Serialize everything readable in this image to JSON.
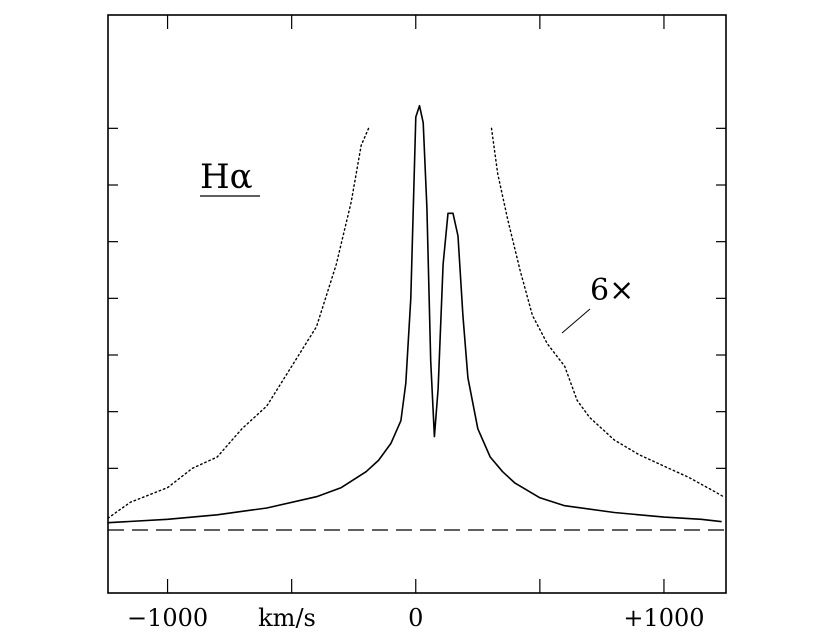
{
  "chart_data": {
    "type": "line",
    "title": "",
    "xlabel": "km/s",
    "ylabel": "",
    "xlim": [
      -1240,
      1250
    ],
    "ylim": [
      -0.6,
      4.5
    ],
    "grid": false,
    "x_ticks": [
      -1000,
      -500,
      0,
      500,
      1000
    ],
    "x_tick_labels": [
      "−1000",
      "",
      "0",
      "",
      "+1000"
    ],
    "y_ticks": [
      0.5,
      1.0,
      1.5,
      2.0,
      2.5,
      3.0,
      3.5
    ],
    "annotations": [
      {
        "text": "Hα"
      },
      {
        "text": "6×"
      }
    ],
    "series": [
      {
        "style": "solid",
        "x": [
          -1240,
          -1000,
          -800,
          -600,
          -400,
          -300,
          -200,
          -150,
          -100,
          -60,
          -40,
          -20,
          0,
          15,
          30,
          45,
          60,
          75,
          90,
          110,
          130,
          150,
          170,
          190,
          210,
          250,
          300,
          350,
          400,
          500,
          600,
          800,
          1000,
          1150,
          1230
        ],
        "y": [
          0.02,
          0.05,
          0.09,
          0.15,
          0.25,
          0.33,
          0.47,
          0.57,
          0.72,
          0.92,
          1.25,
          2.0,
          3.6,
          3.7,
          3.55,
          2.8,
          1.45,
          0.78,
          1.2,
          2.3,
          2.75,
          2.75,
          2.55,
          1.85,
          1.3,
          0.85,
          0.6,
          0.47,
          0.37,
          0.24,
          0.17,
          0.11,
          0.07,
          0.05,
          0.03
        ]
      },
      {
        "style": "dotted",
        "x": [
          -1240,
          -1150,
          -1000,
          -900,
          -800,
          -700,
          -600,
          -500,
          -400,
          -320,
          -260,
          -220,
          -190
        ],
        "y": [
          0.06,
          0.2,
          0.33,
          0.5,
          0.6,
          0.85,
          1.05,
          1.4,
          1.75,
          2.3,
          2.85,
          3.35,
          3.5
        ]
      },
      {
        "style": "dotted",
        "x": [
          305,
          330,
          370,
          420,
          470,
          530,
          600,
          650,
          700,
          800,
          900,
          1000,
          1100,
          1200,
          1240
        ],
        "y": [
          3.5,
          3.1,
          2.7,
          2.25,
          1.85,
          1.6,
          1.4,
          1.1,
          0.95,
          0.75,
          0.62,
          0.52,
          0.42,
          0.3,
          0.25
        ]
      }
    ]
  }
}
